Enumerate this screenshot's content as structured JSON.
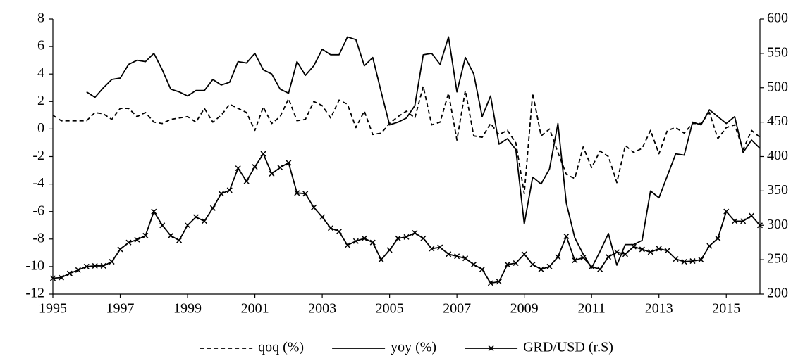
{
  "chart_data": {
    "type": "line",
    "x": [
      1995,
      1995.25,
      1995.5,
      1995.75,
      1996,
      1996.25,
      1996.5,
      1996.75,
      1997,
      1997.25,
      1997.5,
      1997.75,
      1998,
      1998.25,
      1998.5,
      1998.75,
      1999,
      1999.25,
      1999.5,
      1999.75,
      2000,
      2000.25,
      2000.5,
      2000.75,
      2001,
      2001.25,
      2001.5,
      2001.75,
      2002,
      2002.25,
      2002.5,
      2002.75,
      2003,
      2003.25,
      2003.5,
      2003.75,
      2004,
      2004.25,
      2004.5,
      2004.75,
      2005,
      2005.25,
      2005.5,
      2005.75,
      2006,
      2006.25,
      2006.5,
      2006.75,
      2007,
      2007.25,
      2007.5,
      2007.75,
      2008,
      2008.25,
      2008.5,
      2008.75,
      2009,
      2009.25,
      2009.5,
      2009.75,
      2010,
      2010.25,
      2010.5,
      2010.75,
      2011,
      2011.25,
      2011.5,
      2011.75,
      2012,
      2012.25,
      2012.5,
      2012.75,
      2013,
      2013.25,
      2013.5,
      2013.75,
      2014,
      2014.25,
      2014.5,
      2014.75,
      2015,
      2015.25,
      2015.5,
      2015.75,
      2016
    ],
    "series": [
      {
        "name": "qoq (%)",
        "color": "#000000",
        "style": "dashed",
        "values": [
          1.0,
          0.6,
          0.6,
          0.6,
          0.6,
          1.2,
          1.1,
          0.7,
          1.5,
          1.5,
          0.9,
          1.2,
          0.5,
          0.4,
          0.7,
          0.8,
          0.9,
          0.5,
          1.5,
          0.5,
          1.0,
          1.8,
          1.5,
          1.2,
          -0.1,
          1.6,
          0.4,
          0.9,
          2.2,
          0.6,
          0.7,
          2.0,
          1.7,
          0.8,
          2.1,
          1.8,
          0.1,
          1.3,
          -0.4,
          -0.3,
          0.4,
          0.9,
          1.3,
          0.8,
          3.1,
          0.3,
          0.5,
          2.6,
          -0.8,
          2.8,
          -0.5,
          -0.6,
          0.4,
          -0.4,
          -0.1,
          -1.0,
          -4.7,
          2.6,
          -0.5,
          0.0,
          -1.7,
          -3.3,
          -3.6,
          -1.3,
          -2.8,
          -1.6,
          -2.0,
          -3.9,
          -1.2,
          -1.7,
          -1.4,
          -0.1,
          -1.8,
          -0.1,
          0.1,
          -0.3,
          0.4,
          0.4,
          1.2,
          -0.7,
          0.1,
          0.3,
          -1.5,
          -0.1,
          -0.6
        ]
      },
      {
        "name": "yoy (%)",
        "color": "#000000",
        "style": "solid",
        "values": [
          null,
          null,
          null,
          null,
          2.7,
          2.3,
          3.0,
          3.6,
          3.7,
          4.7,
          5.0,
          4.9,
          5.5,
          4.3,
          2.9,
          2.7,
          2.4,
          2.8,
          2.8,
          3.6,
          3.2,
          3.4,
          4.9,
          4.8,
          5.5,
          4.3,
          4.0,
          2.9,
          2.6,
          4.9,
          3.9,
          4.6,
          5.8,
          5.4,
          5.4,
          6.7,
          6.5,
          4.6,
          5.2,
          2.7,
          0.3,
          0.5,
          0.8,
          1.7,
          5.4,
          5.5,
          4.7,
          6.7,
          2.7,
          5.2,
          4.0,
          0.9,
          2.4,
          -1.1,
          -0.7,
          -1.5,
          -6.9,
          -3.5,
          -4.0,
          -2.9,
          0.4,
          -5.4,
          -7.9,
          -9.1,
          -10.1,
          -8.9,
          -7.6,
          -9.9,
          -8.4,
          -8.4,
          -8.1,
          -4.5,
          -5.0,
          -3.4,
          -1.8,
          -1.9,
          0.5,
          0.3,
          1.4,
          0.9,
          0.4,
          0.9,
          -1.7,
          -0.8,
          -1.4
        ]
      },
      {
        "name": "GRD/USD (r.S)",
        "color": "#000000",
        "style": "solid",
        "marker": "x",
        "axis": "y2",
        "values": [
          223,
          224,
          230,
          235,
          240,
          241,
          241,
          247,
          265,
          275,
          279,
          285,
          320,
          300,
          285,
          278,
          300,
          312,
          306,
          325,
          346,
          351,
          383,
          364,
          385,
          404,
          375,
          384,
          391,
          347,
          346,
          326,
          312,
          296,
          291,
          271,
          277,
          281,
          275,
          250,
          264,
          281,
          283,
          289,
          281,
          266,
          268,
          258,
          255,
          252,
          243,
          236,
          216,
          218,
          243,
          245,
          258,
          243,
          236,
          240,
          254,
          284,
          249,
          253,
          240,
          236,
          254,
          261,
          258,
          269,
          265,
          261,
          266,
          263,
          251,
          247,
          248,
          250,
          270,
          281,
          320,
          306,
          306,
          314,
          300
        ]
      }
    ],
    "xlim": [
      1995,
      2016
    ],
    "xticks": [
      1995,
      1997,
      1999,
      2001,
      2003,
      2005,
      2007,
      2009,
      2011,
      2013,
      2015
    ],
    "ylim": [
      -12,
      8
    ],
    "yticks": [
      -12,
      -10,
      -8,
      -6,
      -4,
      -2,
      0,
      2,
      4,
      6,
      8
    ],
    "y2lim": [
      200,
      600
    ],
    "y2ticks": [
      200,
      250,
      300,
      350,
      400,
      450,
      500,
      550,
      600
    ],
    "legend": "bottom"
  }
}
